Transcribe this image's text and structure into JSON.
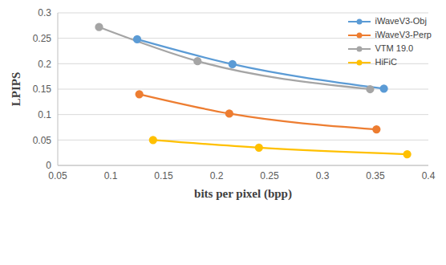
{
  "chart_data": {
    "type": "line",
    "x_label": "bits per pixel (bpp)",
    "y_label": "LPIPS",
    "xlim": [
      0.05,
      0.4
    ],
    "xticks": [
      0.05,
      0.1,
      0.15,
      0.2,
      0.25,
      0.3,
      0.35,
      0.4
    ],
    "ylim": [
      0,
      0.3
    ],
    "yticks": [
      0,
      0.05,
      0.1,
      0.15,
      0.2,
      0.25,
      0.3
    ],
    "grid": true,
    "legend": "upper right",
    "marker": "circle",
    "series": [
      {
        "name": "iWaveV3-Obj",
        "color": "#5b9bd5",
        "x": [
          0.125,
          0.215,
          0.358
        ],
        "values": [
          0.248,
          0.199,
          0.151
        ]
      },
      {
        "name": "iWaveV3-Perp",
        "color": "#ed7d31",
        "x": [
          0.127,
          0.212,
          0.351
        ],
        "values": [
          0.14,
          0.102,
          0.071
        ]
      },
      {
        "name": "VTM 19.0",
        "color": "#a5a5a5",
        "x": [
          0.089,
          0.182,
          0.345
        ],
        "values": [
          0.272,
          0.205,
          0.15
        ]
      },
      {
        "name": "HiFiC",
        "color": "#ffc000",
        "x": [
          0.14,
          0.24,
          0.38
        ],
        "values": [
          0.05,
          0.035,
          0.022
        ]
      }
    ]
  }
}
